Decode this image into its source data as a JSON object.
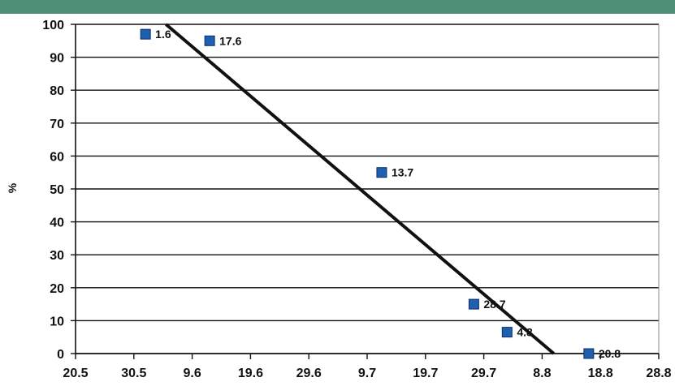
{
  "header": {
    "band_color": "#4f8f78"
  },
  "chart_data": {
    "type": "scatter",
    "title": "",
    "xlabel": "",
    "ylabel": "%",
    "ylim": [
      0,
      100
    ],
    "yticks": [
      0,
      10,
      20,
      30,
      40,
      50,
      60,
      70,
      80,
      90,
      100
    ],
    "xtick_labels": [
      "20.5",
      "30.5",
      "9.6",
      "19.6",
      "29.6",
      "9.7",
      "19.7",
      "29.7",
      "8.8",
      "18.8",
      "28.8"
    ],
    "grid": "horizontal",
    "points": [
      {
        "x": 1.2,
        "y": 97,
        "label": "1.6"
      },
      {
        "x": 2.3,
        "y": 95,
        "label": "17.6"
      },
      {
        "x": 5.25,
        "y": 55,
        "label": "13.7"
      },
      {
        "x": 6.83,
        "y": 15,
        "label": "28.7"
      },
      {
        "x": 7.4,
        "y": 6.5,
        "label": "4.8"
      },
      {
        "x": 8.8,
        "y": 0,
        "label": "20.8"
      }
    ],
    "trendline": {
      "x": [
        1.55,
        8.2
      ],
      "y": [
        100,
        0
      ]
    },
    "marker_color": "#1f5fb0",
    "line_color": "#111111"
  }
}
